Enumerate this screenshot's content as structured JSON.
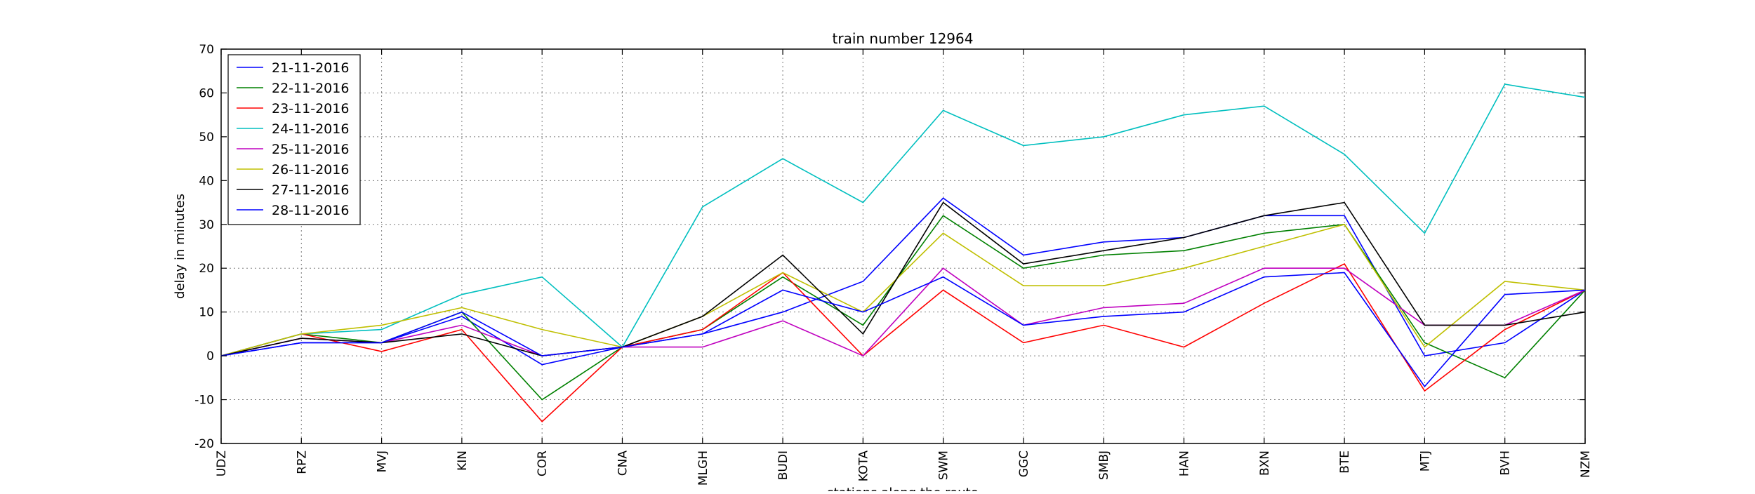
{
  "chart_data": {
    "type": "line",
    "title": "train number 12964",
    "xlabel": "stations along the route",
    "ylabel": "delay in minutes",
    "ylim": [
      -20,
      70
    ],
    "yticks": [
      -20,
      -10,
      0,
      10,
      20,
      30,
      40,
      50,
      60,
      70
    ],
    "grid": true,
    "legend_position": "top-left",
    "categories": [
      "UDZ",
      "RPZ",
      "MVJ",
      "KIN",
      "COR",
      "CNA",
      "MLGH",
      "BUDI",
      "KOTA",
      "SWM",
      "GGC",
      "SMBJ",
      "HAN",
      "BXN",
      "BTE",
      "MTJ",
      "BVH",
      "NZM"
    ],
    "series": [
      {
        "name": "21-11-2016",
        "color": "#0000ff",
        "values": [
          0,
          3,
          3,
          9,
          -2,
          2,
          5,
          10,
          17,
          36,
          23,
          26,
          27,
          32,
          32,
          0,
          3,
          15
        ]
      },
      {
        "name": "22-11-2016",
        "color": "#008000",
        "values": [
          0,
          5,
          3,
          10,
          -10,
          2,
          6,
          18,
          7,
          32,
          20,
          23,
          24,
          28,
          30,
          3,
          -5,
          15
        ]
      },
      {
        "name": "23-11-2016",
        "color": "#ff0000",
        "values": [
          0,
          5,
          1,
          6,
          -15,
          2,
          6,
          19,
          0,
          15,
          3,
          7,
          2,
          12,
          21,
          -8,
          6,
          15
        ]
      },
      {
        "name": "24-11-2016",
        "color": "#00bfbf",
        "values": [
          0,
          5,
          6,
          14,
          18,
          2,
          34,
          45,
          35,
          56,
          48,
          50,
          55,
          57,
          46,
          28,
          62,
          59
        ]
      },
      {
        "name": "25-11-2016",
        "color": "#bf00bf",
        "values": [
          0,
          4,
          3,
          7,
          0,
          2,
          2,
          8,
          0,
          20,
          7,
          11,
          12,
          20,
          20,
          7,
          7,
          15
        ]
      },
      {
        "name": "26-11-2016",
        "color": "#bfbf00",
        "values": [
          0,
          5,
          7,
          11,
          6,
          2,
          9,
          19,
          10,
          28,
          16,
          16,
          20,
          25,
          30,
          2,
          17,
          15
        ]
      },
      {
        "name": "27-11-2016",
        "color": "#000000",
        "values": [
          0,
          4,
          3,
          5,
          0,
          2,
          9,
          23,
          5,
          35,
          21,
          24,
          27,
          32,
          35,
          7,
          7,
          10
        ]
      },
      {
        "name": "28-11-2016",
        "color": "#0000ff",
        "values": [
          0,
          3,
          3,
          10,
          0,
          2,
          5,
          15,
          10,
          18,
          7,
          9,
          10,
          18,
          19,
          -7,
          14,
          15
        ]
      }
    ]
  }
}
